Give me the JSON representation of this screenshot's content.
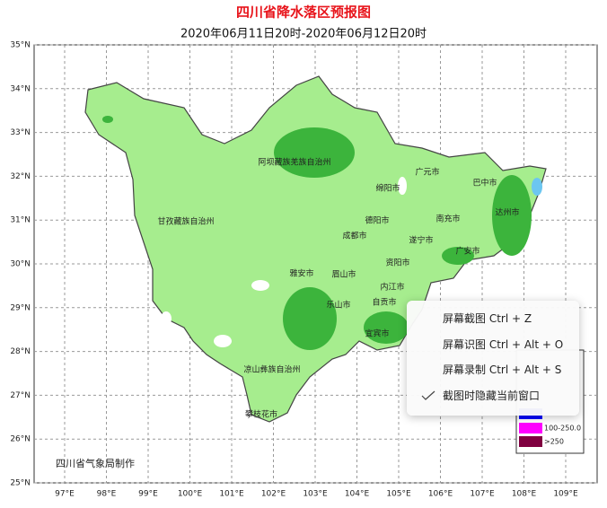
{
  "header": {
    "title": "四川省降水落区预报图",
    "subtitle": "2020年06月11日20时-2020年06月12日20时"
  },
  "axes": {
    "lat_ticks": [
      {
        "value": 25,
        "label": "25°N"
      },
      {
        "value": 26,
        "label": "26°N"
      },
      {
        "value": 27,
        "label": "27°N"
      },
      {
        "value": 28,
        "label": "28°N"
      },
      {
        "value": 29,
        "label": "29°N"
      },
      {
        "value": 30,
        "label": "30°N"
      },
      {
        "value": 31,
        "label": "31°N"
      },
      {
        "value": 32,
        "label": "32°N"
      },
      {
        "value": 33,
        "label": "33°N"
      },
      {
        "value": 34,
        "label": "34°N"
      },
      {
        "value": 35,
        "label": "35°N"
      }
    ],
    "lon_ticks": [
      {
        "value": 97,
        "label": "97°E"
      },
      {
        "value": 98,
        "label": "98°E"
      },
      {
        "value": 99,
        "label": "99°E"
      },
      {
        "value": 100,
        "label": "100°E"
      },
      {
        "value": 101,
        "label": "101°E"
      },
      {
        "value": 102,
        "label": "102°E"
      },
      {
        "value": 103,
        "label": "103°E"
      },
      {
        "value": 104,
        "label": "104°E"
      },
      {
        "value": 105,
        "label": "105°E"
      },
      {
        "value": 106,
        "label": "106°E"
      },
      {
        "value": 107,
        "label": "107°E"
      },
      {
        "value": 108,
        "label": "108°E"
      },
      {
        "value": 109,
        "label": "109°E"
      }
    ]
  },
  "regions": [
    "阿坝藏族羌族自治州",
    "甘孜藏族自治州",
    "广元市",
    "巴中市",
    "绵阳市",
    "达州市",
    "德阳市",
    "南充市",
    "成都市",
    "遂宁市",
    "广安市",
    "资阳市",
    "雅安市",
    "眉山市",
    "内江市",
    "乐山市",
    "自贡市",
    "宜宾市",
    "凉山彝族自治州",
    "攀枝花市"
  ],
  "credit": "四川省气象局制作",
  "legend": [
    {
      "label": "100-250.0",
      "color": "#ff00ff"
    },
    {
      "label": ">250",
      "color": "#800040"
    }
  ],
  "menu": {
    "items": [
      "屏幕截图 Ctrl + Z",
      "屏幕识图 Ctrl + Alt + O",
      "屏幕录制 Ctrl + Alt + S",
      "截图时隐藏当前窗口"
    ]
  }
}
